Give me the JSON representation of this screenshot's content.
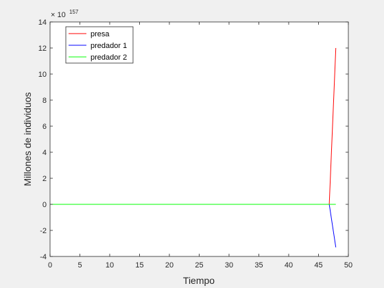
{
  "chart_data": {
    "type": "line",
    "xlabel": "Tiempo",
    "ylabel": "Millones de individuos",
    "xlim": [
      0,
      50
    ],
    "ylim": [
      -4,
      14
    ],
    "xticks": [
      0,
      5,
      10,
      15,
      20,
      25,
      30,
      35,
      40,
      45,
      50
    ],
    "yticks": [
      -4,
      -2,
      0,
      2,
      4,
      6,
      8,
      10,
      12,
      14
    ],
    "y_exponent": {
      "base": "× 10",
      "power": "157"
    },
    "grid": false,
    "legend_position": "top-left",
    "series": [
      {
        "name": "presa",
        "color": "#ff0000",
        "points": [
          [
            0,
            0
          ],
          [
            46.8,
            0
          ],
          [
            47.9,
            12.0
          ]
        ]
      },
      {
        "name": "predador 1",
        "color": "#0000ff",
        "points": [
          [
            0,
            0
          ],
          [
            46.8,
            0
          ],
          [
            47.9,
            -3.3
          ]
        ]
      },
      {
        "name": "predador 2",
        "color": "#00ff00",
        "points": [
          [
            0,
            0
          ],
          [
            47.9,
            0
          ]
        ]
      }
    ]
  }
}
